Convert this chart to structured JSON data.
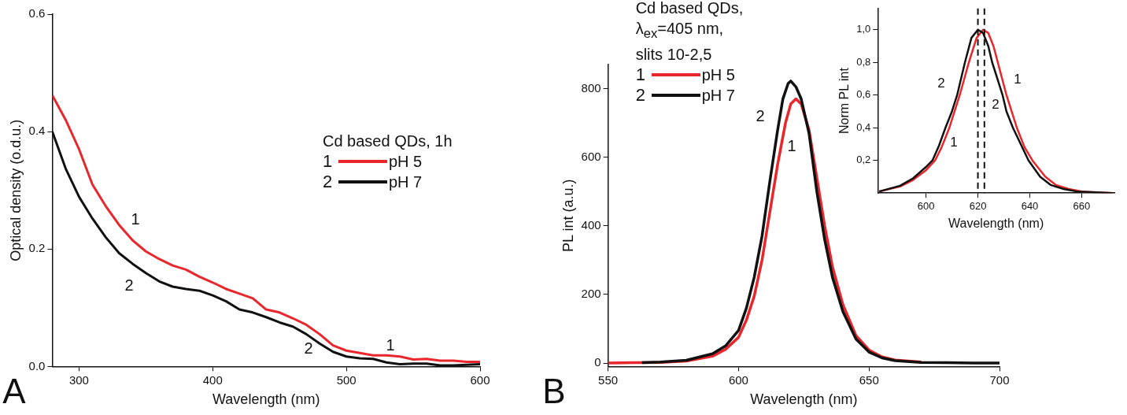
{
  "chart_data": [
    {
      "type": "line",
      "xlabel": "Wavelength (nm)",
      "ylabel": "Optical density (o.d.u.)",
      "xlim": [
        280,
        600
      ],
      "ylim": [
        0,
        0.6
      ],
      "xticks": [
        300,
        400,
        500,
        600
      ],
      "yticks": [
        {
          "value": 0,
          "label": "0.0"
        },
        0.2,
        0.4,
        0.6
      ],
      "legend": "right",
      "legend_title": "Cd based QDs, 1h",
      "series": [
        {
          "name": "pH 5",
          "color": "#e8262b",
          "x": [
            280,
            290,
            300,
            310,
            320,
            330,
            340,
            350,
            360,
            370,
            380,
            390,
            400,
            410,
            420,
            430,
            440,
            450,
            460,
            470,
            480,
            490,
            500,
            510,
            520,
            530,
            540,
            550,
            560,
            570,
            580,
            590,
            600
          ],
          "values": [
            0.462,
            0.42,
            0.37,
            0.31,
            0.273,
            0.241,
            0.215,
            0.196,
            0.183,
            0.172,
            0.165,
            0.153,
            0.143,
            0.132,
            0.124,
            0.116,
            0.097,
            0.092,
            0.082,
            0.071,
            0.055,
            0.036,
            0.027,
            0.023,
            0.019,
            0.019,
            0.017,
            0.012,
            0.013,
            0.01,
            0.01,
            0.008,
            0.008
          ]
        },
        {
          "name": "pH 7",
          "color": "#111111",
          "x": [
            280,
            290,
            300,
            310,
            320,
            330,
            340,
            350,
            360,
            370,
            380,
            390,
            400,
            410,
            420,
            430,
            440,
            450,
            460,
            470,
            480,
            490,
            500,
            510,
            520,
            530,
            540,
            550,
            560,
            570,
            580,
            590,
            600
          ],
          "values": [
            0.4,
            0.337,
            0.289,
            0.252,
            0.22,
            0.193,
            0.175,
            0.159,
            0.145,
            0.136,
            0.132,
            0.129,
            0.121,
            0.111,
            0.097,
            0.092,
            0.084,
            0.075,
            0.068,
            0.055,
            0.039,
            0.025,
            0.017,
            0.014,
            0.013,
            0.007,
            0.004,
            0.005,
            0.005,
            0.002,
            0.002,
            0.003,
            0.004
          ]
        }
      ],
      "annotations": [
        "A",
        "1",
        "2",
        "2",
        "1"
      ]
    },
    {
      "type": "line",
      "xlabel": "Wavelength (nm)",
      "ylabel": "PL int (a.u.)",
      "xlim": [
        550,
        700
      ],
      "ylim": [
        -10,
        870
      ],
      "xticks": [
        550,
        600,
        650,
        700
      ],
      "yticks": [
        0,
        200,
        400,
        600,
        800
      ],
      "legend": "top left",
      "legend_title": "Cd based QDs, λ$_{ex}$=405 nm, slits 10-2,5",
      "series": [
        {
          "name": "pH 5",
          "color": "#e8262b",
          "x": [
            550,
            560,
            570,
            580,
            590,
            595,
            600,
            603,
            606,
            609,
            612,
            615,
            618,
            620,
            622,
            624,
            627,
            630,
            633,
            636,
            640,
            645,
            650,
            655,
            660,
            670
          ],
          "values": [
            0,
            1,
            2,
            6,
            20,
            40,
            75,
            125,
            195,
            300,
            440,
            580,
            700,
            755,
            770,
            755,
            680,
            540,
            400,
            280,
            170,
            80,
            38,
            18,
            9,
            3
          ]
        },
        {
          "name": "pH 7",
          "color": "#111111",
          "x": [
            563,
            570,
            580,
            590,
            595,
            600,
            603,
            606,
            609,
            612,
            615,
            617,
            619,
            620,
            622,
            624,
            627,
            630,
            633,
            636,
            640,
            645,
            650,
            655,
            660,
            670,
            680,
            690,
            700
          ],
          "values": [
            1,
            3,
            8,
            27,
            50,
            95,
            160,
            250,
            370,
            530,
            680,
            770,
            815,
            822,
            805,
            770,
            670,
            500,
            360,
            250,
            150,
            70,
            32,
            15,
            7,
            2,
            1,
            0,
            0
          ]
        }
      ],
      "annotations": [
        "B",
        "2",
        "1"
      ]
    },
    {
      "type": "line",
      "xlabel": "Wavelength (nm)",
      "ylabel": "Norm PL int",
      "xlim": [
        581.4,
        672.6
      ],
      "ylim": [
        0,
        1.13
      ],
      "xticks": [
        600,
        620,
        640,
        660
      ],
      "yticks": [
        {
          "value": 0.2,
          "label": "0,2"
        },
        {
          "value": 0.4,
          "label": "0,4"
        },
        {
          "value": 0.6,
          "label": "0,6"
        },
        {
          "value": 0.8,
          "label": "0,8"
        },
        {
          "value": 1,
          "label": "1,0"
        }
      ],
      "series": [
        {
          "color": "#e8262b",
          "x": [
            582,
            590,
            595,
            600,
            603.5,
            606,
            609,
            611,
            613,
            616.5,
            619.5,
            622,
            624,
            626,
            628,
            631,
            633,
            635,
            638,
            641,
            646,
            650,
            655,
            660,
            672
          ],
          "values": [
            0.01,
            0.04,
            0.08,
            0.14,
            0.2,
            0.28,
            0.4,
            0.5,
            0.6,
            0.8,
            0.95,
            1,
            0.98,
            0.9,
            0.78,
            0.6,
            0.5,
            0.4,
            0.28,
            0.2,
            0.1,
            0.05,
            0.025,
            0.01,
            0
          ]
        },
        {
          "color": "#111111",
          "x": [
            582,
            590,
            595,
            600,
            602.5,
            605,
            607.5,
            610,
            612,
            615,
            617.5,
            620,
            622,
            624,
            625.5,
            627.5,
            629.5,
            631,
            633.5,
            636.5,
            639.5,
            644,
            648,
            653,
            658,
            672
          ],
          "values": [
            0.01,
            0.045,
            0.09,
            0.16,
            0.2,
            0.29,
            0.4,
            0.5,
            0.6,
            0.8,
            0.95,
            1,
            0.98,
            0.9,
            0.8,
            0.7,
            0.6,
            0.5,
            0.4,
            0.3,
            0.2,
            0.1,
            0.05,
            0.025,
            0.01,
            0
          ]
        }
      ],
      "ref_lines": [
        {
          "axis": "x",
          "value": 620,
          "color": "#111111",
          "line_style": "dashed"
        },
        {
          "axis": "x",
          "value": 622.5,
          "color": "#111111",
          "line_style": "dashed"
        }
      ],
      "annotations": [
        "2",
        "1",
        "1",
        "2"
      ]
    }
  ]
}
